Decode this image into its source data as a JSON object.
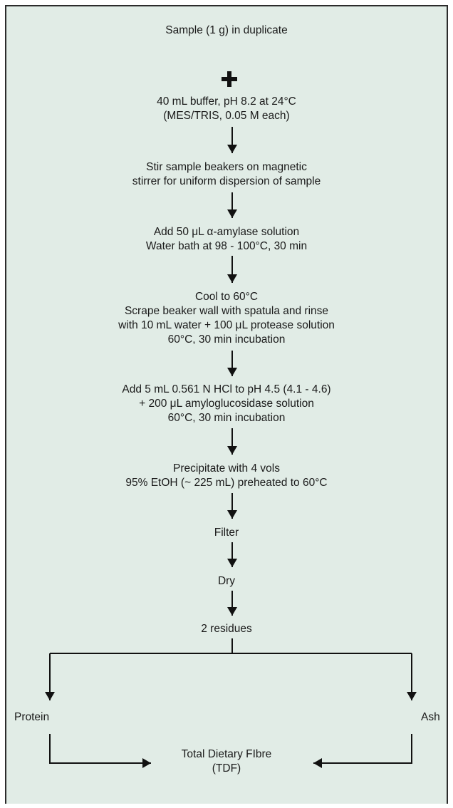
{
  "steps": [
    {
      "lines": [
        "Sample (1 g) in duplicate"
      ]
    },
    {
      "lines": [
        "40 mL buffer, pH 8.2 at 24°C",
        "(MES/TRIS, 0.05 M each)"
      ]
    },
    {
      "lines": [
        "Stir sample beakers on magnetic",
        "stirrer for uniform dispersion of sample"
      ]
    },
    {
      "lines": [
        "Add 50 μL α-amylase solution",
        "Water bath at 98 - 100°C, 30 min"
      ]
    },
    {
      "lines": [
        "Cool to 60°C",
        "Scrape beaker wall with spatula and rinse",
        "with 10 mL water + 100 μL protease solution",
        "60°C, 30 min incubation"
      ]
    },
    {
      "lines": [
        "Add 5 mL 0.561 N HCl to pH 4.5 (4.1 - 4.6)",
        "+ 200 μL amyloglucosidase solution",
        "60°C, 30 min incubation"
      ]
    },
    {
      "lines": [
        "Precipitate with 4 vols",
        "95% EtOH (~ 225 mL) preheated to 60°C"
      ]
    },
    {
      "lines": [
        "Filter"
      ]
    },
    {
      "lines": [
        "Dry"
      ]
    },
    {
      "lines": [
        "2 residues"
      ]
    }
  ],
  "branches": {
    "left": "Protein",
    "right": "Ash"
  },
  "result": {
    "line1": "Total Dietary FIbre",
    "line2": "(TDF)"
  },
  "colors": {
    "background": "#e1ece6",
    "border": "#2b2b2b",
    "arrow": "#111111"
  }
}
